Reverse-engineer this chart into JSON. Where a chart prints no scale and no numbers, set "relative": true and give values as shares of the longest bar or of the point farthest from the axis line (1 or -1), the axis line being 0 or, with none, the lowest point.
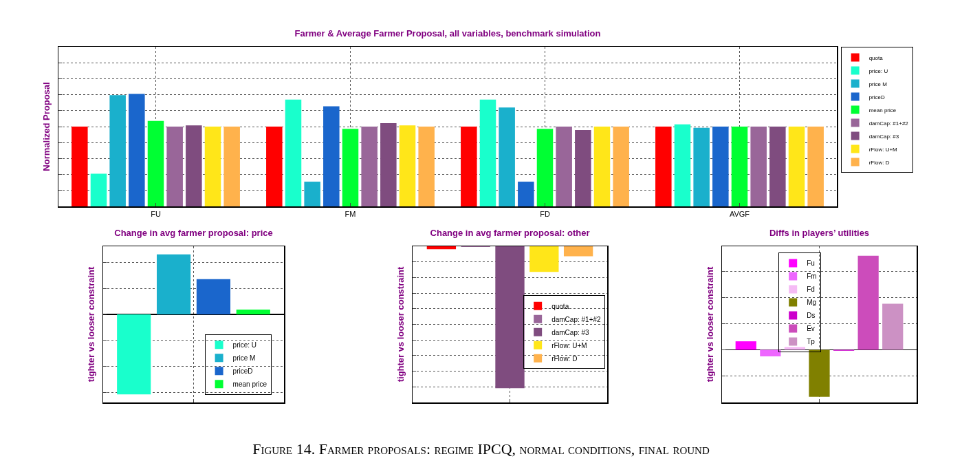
{
  "chart_data": [
    {
      "type": "bar",
      "title": "Farmer & Average Farmer Proposal, all variables, benchmark simulation",
      "ylabel": "Normalized Proposal",
      "relative": true,
      "grid": true,
      "legend": "top right",
      "categories": [
        "FU",
        "FM",
        "FD",
        "AVGF"
      ],
      "annotations": [
        "Figure 14. Farmer proposals: regime IPCQ, normal conditions, final round"
      ],
      "series": [
        {
          "name": "quota",
          "color": "#ff0000",
          "values": [
            0.71,
            0.71,
            0.71,
            0.71
          ]
        },
        {
          "name": "price: U",
          "color": "#19ffcc",
          "values": [
            0.29,
            0.95,
            0.95,
            0.73
          ]
        },
        {
          "name": "price M",
          "color": "#1ab0cc",
          "values": [
            0.99,
            0.22,
            0.88,
            0.7
          ]
        },
        {
          "name": "priceD",
          "color": "#1a66cc",
          "values": [
            1,
            0.89,
            0.22,
            0.71
          ]
        },
        {
          "name": "mean price",
          "color": "#00ff33",
          "values": [
            0.76,
            0.69,
            0.69,
            0.71
          ]
        },
        {
          "name": "damCap: #1+#2",
          "color": "#996699",
          "values": [
            0.71,
            0.71,
            0.71,
            0.71
          ]
        },
        {
          "name": "damCap: #3",
          "color": "#7f4c7f",
          "values": [
            0.72,
            0.74,
            0.68,
            0.71
          ]
        },
        {
          "name": "rFlow: U+M",
          "color": "#ffe619",
          "values": [
            0.71,
            0.72,
            0.71,
            0.71
          ]
        },
        {
          "name": "rFlow: D",
          "color": "#ffb24c",
          "values": [
            0.71,
            0.71,
            0.71,
            0.71
          ]
        }
      ]
    },
    {
      "type": "bar",
      "title": "Change in avg farmer proposal: price",
      "ylabel": "tighter vs looser constraint",
      "relative": true,
      "grid": true,
      "legend": "bottom right",
      "categories": [
        null
      ],
      "series": [
        {
          "name": "price: U",
          "color": "#19ffcc",
          "values": [
            -1
          ]
        },
        {
          "name": "price M",
          "color": "#1ab0cc",
          "values": [
            0.75
          ]
        },
        {
          "name": "priceD",
          "color": "#1a66cc",
          "values": [
            0.44
          ]
        },
        {
          "name": "mean price",
          "color": "#00ff33",
          "values": [
            0.06
          ]
        }
      ]
    },
    {
      "type": "bar",
      "title": "Change in avg farmer proposal: other",
      "ylabel": "tighter vs looser constraint",
      "relative": true,
      "grid": true,
      "legend": "right",
      "categories": [
        null
      ],
      "series": [
        {
          "name": "quota",
          "color": "#ff0000",
          "values": [
            -0.02
          ]
        },
        {
          "name": "damCap: #1+#2",
          "color": "#996699",
          "values": [
            -0.005
          ]
        },
        {
          "name": "damCap: #3",
          "color": "#7f4c7f",
          "values": [
            -1
          ]
        },
        {
          "name": "rFlow: U+M",
          "color": "#ffe619",
          "values": [
            -0.18
          ]
        },
        {
          "name": "rFlow: D",
          "color": "#ffb24c",
          "values": [
            -0.07
          ]
        }
      ]
    },
    {
      "type": "bar",
      "title": "Diffs in players’ utilities",
      "ylabel": "tighter vs looser constraint",
      "relative": true,
      "grid": true,
      "legend": "top",
      "categories": [
        null
      ],
      "series": [
        {
          "name": "Fu",
          "color": "#ff00ff",
          "values": [
            0.09
          ]
        },
        {
          "name": "Fm",
          "color": "#ee66ff",
          "values": [
            -0.07
          ]
        },
        {
          "name": "Fd",
          "color": "#f5bbf5",
          "values": [
            0.03
          ]
        },
        {
          "name": "Mg",
          "color": "#808000",
          "values": [
            -0.5
          ]
        },
        {
          "name": "Ds",
          "color": "#cc00cc",
          "values": [
            -0.01
          ]
        },
        {
          "name": "Ev",
          "color": "#cc4cbb",
          "values": [
            1
          ]
        },
        {
          "name": "Tp",
          "color": "#cc91c4",
          "values": [
            0.49
          ]
        }
      ]
    }
  ]
}
